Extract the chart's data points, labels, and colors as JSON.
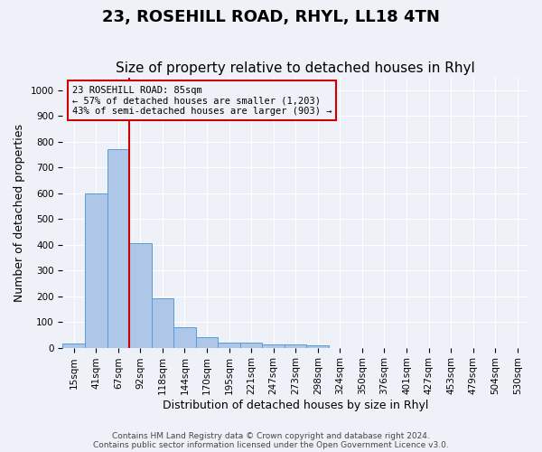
{
  "title": "23, ROSEHILL ROAD, RHYL, LL18 4TN",
  "subtitle": "Size of property relative to detached houses in Rhyl",
  "xlabel": "Distribution of detached houses by size in Rhyl",
  "ylabel": "Number of detached properties",
  "bins": [
    "15sqm",
    "41sqm",
    "67sqm",
    "92sqm",
    "118sqm",
    "144sqm",
    "170sqm",
    "195sqm",
    "221sqm",
    "247sqm",
    "273sqm",
    "298sqm",
    "324sqm",
    "350sqm",
    "376sqm",
    "401sqm",
    "427sqm",
    "453sqm",
    "479sqm",
    "504sqm",
    "530sqm"
  ],
  "values": [
    15,
    600,
    770,
    405,
    190,
    78,
    40,
    18,
    18,
    12,
    12,
    8,
    0,
    0,
    0,
    0,
    0,
    0,
    0,
    0,
    0
  ],
  "bar_color": "#aec6e8",
  "bar_edge_color": "#5b9bd5",
  "vline_pos": 2.5,
  "vline_color": "#cc0000",
  "annotation_text": "23 ROSEHILL ROAD: 85sqm\n← 57% of detached houses are smaller (1,203)\n43% of semi-detached houses are larger (903) →",
  "annotation_box_color": "#cc0000",
  "footer": "Contains HM Land Registry data © Crown copyright and database right 2024.\nContains public sector information licensed under the Open Government Licence v3.0.",
  "ylim": [
    0,
    1050
  ],
  "bg_color": "#eef2f8",
  "grid_color": "#ffffff",
  "title_fontsize": 13,
  "subtitle_fontsize": 11,
  "axis_label_fontsize": 9,
  "tick_fontsize": 7.5,
  "footer_fontsize": 6.5
}
